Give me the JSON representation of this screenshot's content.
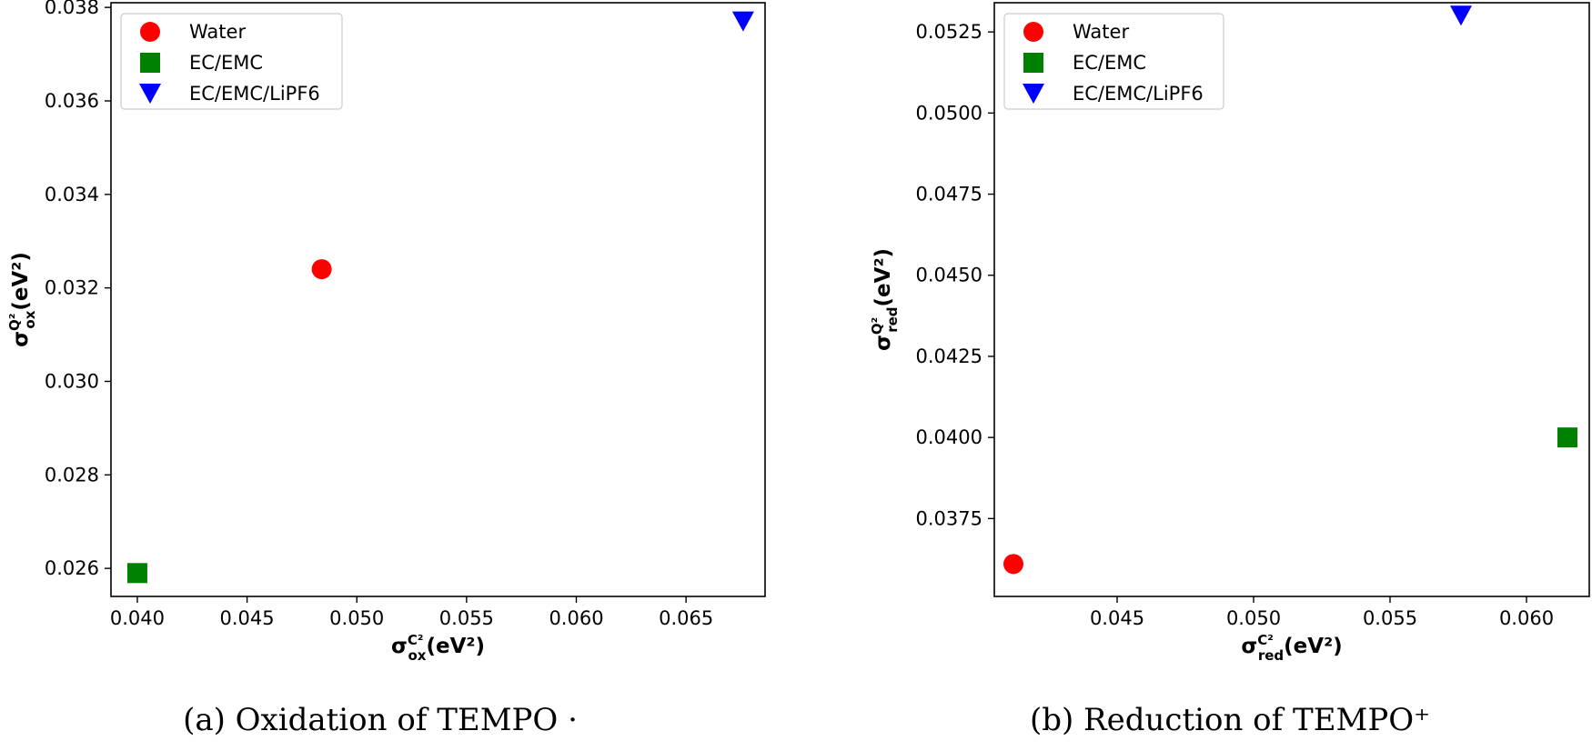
{
  "chart_data": [
    {
      "type": "scatter",
      "caption": "(a) Oxidation of TEMPO ·",
      "xlabel": {
        "base": "σ",
        "sup": "C²",
        "sub": "ox",
        "unit": "(eV²)"
      },
      "ylabel": {
        "base": "σ",
        "sup": "Q²",
        "sub": "ox",
        "unit": "(eV²)"
      },
      "xlim": [
        0.0388,
        0.0686
      ],
      "ylim": [
        0.0254,
        0.0381
      ],
      "xticks": [
        0.04,
        0.045,
        0.05,
        0.055,
        0.06,
        0.065
      ],
      "xtick_labels": [
        "0.040",
        "0.045",
        "0.050",
        "0.055",
        "0.060",
        "0.065"
      ],
      "yticks": [
        0.026,
        0.028,
        0.03,
        0.032,
        0.034,
        0.036,
        0.038
      ],
      "ytick_labels": [
        "0.026",
        "0.028",
        "0.030",
        "0.032",
        "0.034",
        "0.036",
        "0.038"
      ],
      "grid": false,
      "legend_position": "top-left",
      "series": [
        {
          "name": "Water",
          "marker": "circle",
          "color": "#ff0000",
          "x": [
            0.0484
          ],
          "y": [
            0.0324
          ]
        },
        {
          "name": "EC/EMC",
          "marker": "square",
          "color": "#008000",
          "x": [
            0.04
          ],
          "y": [
            0.0259
          ]
        },
        {
          "name": "EC/EMC/LiPF6",
          "marker": "triangle-down",
          "color": "#0000ff",
          "x": [
            0.0676
          ],
          "y": [
            0.0377
          ]
        }
      ]
    },
    {
      "type": "scatter",
      "caption": "(b) Reduction of TEMPO⁺",
      "xlabel": {
        "base": "σ",
        "sup": "C²",
        "sub": "red",
        "unit": "(eV²)"
      },
      "ylabel": {
        "base": "σ",
        "sup": "Q²",
        "sub": "red",
        "unit": "(eV²)"
      },
      "xlim": [
        0.0405,
        0.0623
      ],
      "ylim": [
        0.0351,
        0.0534
      ],
      "xticks": [
        0.045,
        0.05,
        0.055,
        0.06
      ],
      "xtick_labels": [
        "0.045",
        "0.050",
        "0.055",
        "0.060"
      ],
      "yticks": [
        0.0375,
        0.04,
        0.0425,
        0.045,
        0.0475,
        0.05,
        0.0525
      ],
      "ytick_labels": [
        "0.0375",
        "0.0400",
        "0.0425",
        "0.0450",
        "0.0475",
        "0.0500",
        "0.0525"
      ],
      "grid": false,
      "legend_position": "top-left",
      "series": [
        {
          "name": "Water",
          "marker": "circle",
          "color": "#ff0000",
          "x": [
            0.0412
          ],
          "y": [
            0.0361
          ]
        },
        {
          "name": "EC/EMC",
          "marker": "square",
          "color": "#008000",
          "x": [
            0.0615
          ],
          "y": [
            0.04
          ]
        },
        {
          "name": "EC/EMC/LiPF6",
          "marker": "triangle-down",
          "color": "#0000ff",
          "x": [
            0.0576
          ],
          "y": [
            0.053
          ]
        }
      ]
    }
  ]
}
